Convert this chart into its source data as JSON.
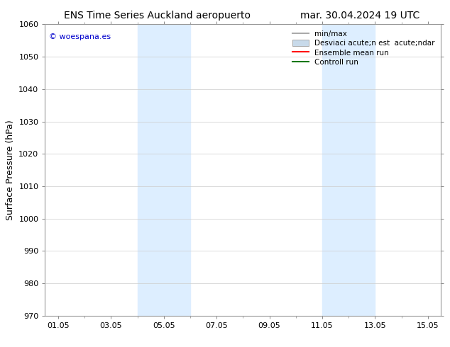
{
  "title_left": "ENS Time Series Auckland aeropuerto",
  "title_right": "mar. 30.04.2024 19 UTC",
  "ylabel": "Surface Pressure (hPa)",
  "watermark": "© woespana.es",
  "watermark_color": "#0000cc",
  "xlim_min": 0.5,
  "xlim_max": 15.5,
  "ylim_min": 970,
  "ylim_max": 1060,
  "xticks": [
    1,
    3,
    5,
    7,
    9,
    11,
    13,
    15
  ],
  "xtick_labels": [
    "01.05",
    "03.05",
    "05.05",
    "07.05",
    "09.05",
    "11.05",
    "13.05",
    "15.05"
  ],
  "yticks": [
    970,
    980,
    990,
    1000,
    1010,
    1020,
    1030,
    1040,
    1050,
    1060
  ],
  "bg_color": "#ffffff",
  "plot_bg_color": "#ffffff",
  "grid_color": "#cccccc",
  "shaded_bands": [
    {
      "x_start": 4.0,
      "x_end": 6.0,
      "color": "#ddeeff"
    },
    {
      "x_start": 11.0,
      "x_end": 13.0,
      "color": "#ddeeff"
    }
  ],
  "legend_entries": [
    {
      "label": "min/max",
      "color": "#aaaaaa",
      "style": "line",
      "lw": 1.5
    },
    {
      "label": "Desviaci acute;n est  acute;ndar",
      "color": "#c8daea",
      "style": "rect"
    },
    {
      "label": "Ensemble mean run",
      "color": "#ff0000",
      "style": "line",
      "lw": 1.5
    },
    {
      "label": "Controll run",
      "color": "#007700",
      "style": "line",
      "lw": 1.5
    }
  ],
  "title_fontsize": 10,
  "axis_fontsize": 9,
  "tick_fontsize": 8,
  "legend_fontsize": 7.5
}
